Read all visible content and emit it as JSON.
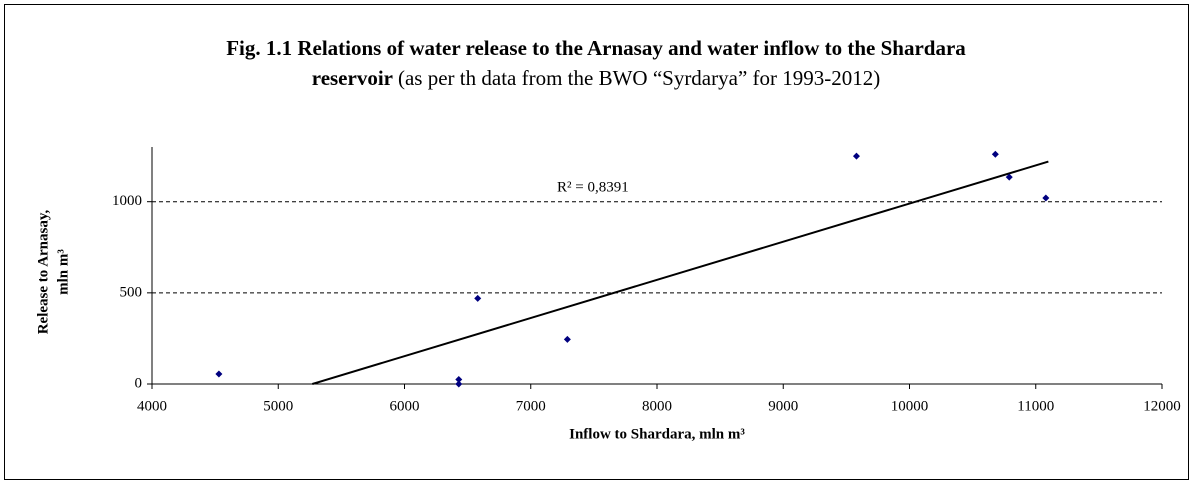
{
  "chart_data": {
    "type": "scatter",
    "title": [
      "Fig. 1.1 Relations of water release to the Arnasay and water inflow to the Shardara",
      "reservoir"
    ],
    "subtitle": "(as per th data from the BWO “Syrdarya” for 1993-2012)",
    "xlabel": "Inflow to Shardara, mln m³",
    "ylabel": [
      "Release to Arnasay,",
      "mln m³"
    ],
    "annotation": "R² = 0,8391",
    "x": [
      4530,
      6430,
      6430,
      6580,
      7290,
      9580,
      10680,
      10790,
      11080
    ],
    "values": [
      55,
      25,
      0,
      470,
      245,
      1250,
      1260,
      1135,
      1020
    ],
    "color": "#00007f",
    "trendline": {
      "x": [
        5270,
        11100
      ],
      "y": [
        0,
        1220
      ]
    },
    "xlim": [
      4000,
      12000
    ],
    "xticks": [
      4000,
      5000,
      6000,
      7000,
      8000,
      9000,
      10000,
      11000,
      12000
    ],
    "ylim": [
      0,
      1300
    ],
    "yticks": [
      0,
      500,
      1000
    ],
    "grid": true
  }
}
